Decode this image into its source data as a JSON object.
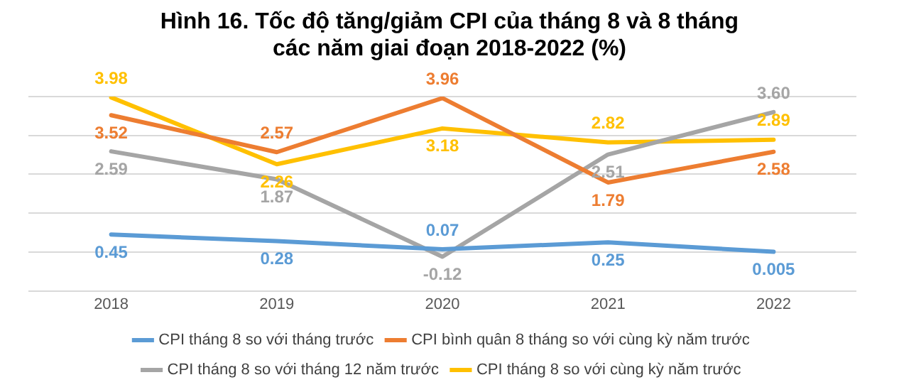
{
  "chart_data": {
    "type": "line",
    "title": "Hình 16. Tốc độ tăng/giảm CPI của tháng 8 và 8 tháng\ncác năm giai đoạn 2018-2022 (%)",
    "categories": [
      "2018",
      "2019",
      "2020",
      "2021",
      "2022"
    ],
    "series": [
      {
        "name": "CPI tháng 8 so với tháng trước",
        "color": "#5b9bd5",
        "values": [
          0.45,
          0.28,
          0.07,
          0.25,
          0.005
        ],
        "value_labels": [
          "0.45",
          "0.28",
          "0.07",
          "0.25",
          "0.005"
        ]
      },
      {
        "name": "CPI bình quân 8 tháng so với cùng kỳ năm trước",
        "color": "#ed7d31",
        "values": [
          3.52,
          2.57,
          3.96,
          1.79,
          2.58
        ],
        "value_labels": [
          "3.52",
          "2.57",
          "3.96",
          "1.79",
          "2.58"
        ]
      },
      {
        "name": "CPI tháng 8 so với tháng 12 năm trước",
        "color": "#a5a5a5",
        "values": [
          2.59,
          1.87,
          -0.12,
          2.51,
          3.6
        ],
        "value_labels": [
          "2.59",
          "1.87",
          "-0.12",
          "2.51",
          "3.60"
        ]
      },
      {
        "name": "CPI tháng 8 so với cùng kỳ năm trước",
        "color": "#ffc000",
        "values": [
          3.98,
          2.26,
          3.18,
          2.82,
          2.89
        ],
        "value_labels": [
          "3.98",
          "2.26",
          "3.18",
          "2.82",
          "2.89"
        ]
      }
    ],
    "ylim": [
      -1,
      4
    ],
    "yticks": [
      {
        "value": -1,
        "label": null
      },
      {
        "value": 0,
        "label": null
      },
      {
        "value": 1,
        "label": null
      },
      {
        "value": 2,
        "label": null
      },
      {
        "value": 3,
        "label": null
      },
      {
        "value": 4,
        "label": null
      }
    ],
    "tick_labels": "x",
    "grid": "y",
    "legend": "bottom",
    "marker": "none",
    "line_style": "solid"
  }
}
